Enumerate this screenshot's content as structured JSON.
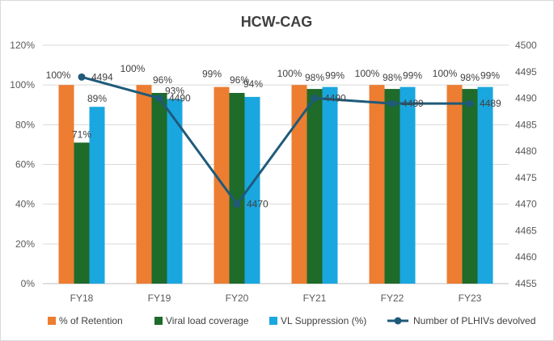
{
  "chart_data": {
    "type": "bar",
    "title": "HCW-CAG",
    "categories": [
      "FY18",
      "FY19",
      "FY20",
      "FY21",
      "FY22",
      "FY23"
    ],
    "series": [
      {
        "name": "% of Retention",
        "kind": "bar",
        "axis": "left",
        "color": "#ED7D31",
        "values": [
          100,
          100,
          99,
          100,
          100,
          100
        ],
        "labels": [
          "100%",
          "100%",
          "99%",
          "100%",
          "100%",
          "100%"
        ]
      },
      {
        "name": "Viral load coverage",
        "kind": "bar",
        "axis": "left",
        "color": "#1E6B2A",
        "values": [
          71,
          96,
          96,
          98,
          98,
          98
        ],
        "labels": [
          "71%",
          "96%",
          "96%",
          "98%",
          "98%",
          "98%"
        ]
      },
      {
        "name": "VL Suppression (%)",
        "kind": "bar",
        "axis": "left",
        "color": "#1AA7E0",
        "values": [
          89,
          93,
          94,
          99,
          99,
          99
        ],
        "labels": [
          "89%",
          "93%",
          "94%",
          "99%",
          "99%",
          "99%"
        ]
      },
      {
        "name": "Number of PLHIVs devolved",
        "kind": "line",
        "axis": "right",
        "color": "#1F5A7A",
        "values": [
          4494,
          4490,
          4470,
          4490,
          4489,
          4489
        ],
        "labels": [
          "4494",
          "4490",
          "4470",
          "4490",
          "4489",
          "4489"
        ]
      }
    ],
    "y_left": {
      "min": 0,
      "max": 120,
      "step": 20,
      "tick_labels": [
        "0%",
        "20%",
        "40%",
        "60%",
        "80%",
        "100%",
        "120%"
      ]
    },
    "y_right": {
      "min": 4455,
      "max": 4500,
      "step": 5,
      "tick_labels": [
        "4455",
        "4460",
        "4465",
        "4470",
        "4475",
        "4480",
        "4485",
        "4490",
        "4495",
        "4500"
      ]
    },
    "grid": true,
    "legend_position": "bottom"
  }
}
